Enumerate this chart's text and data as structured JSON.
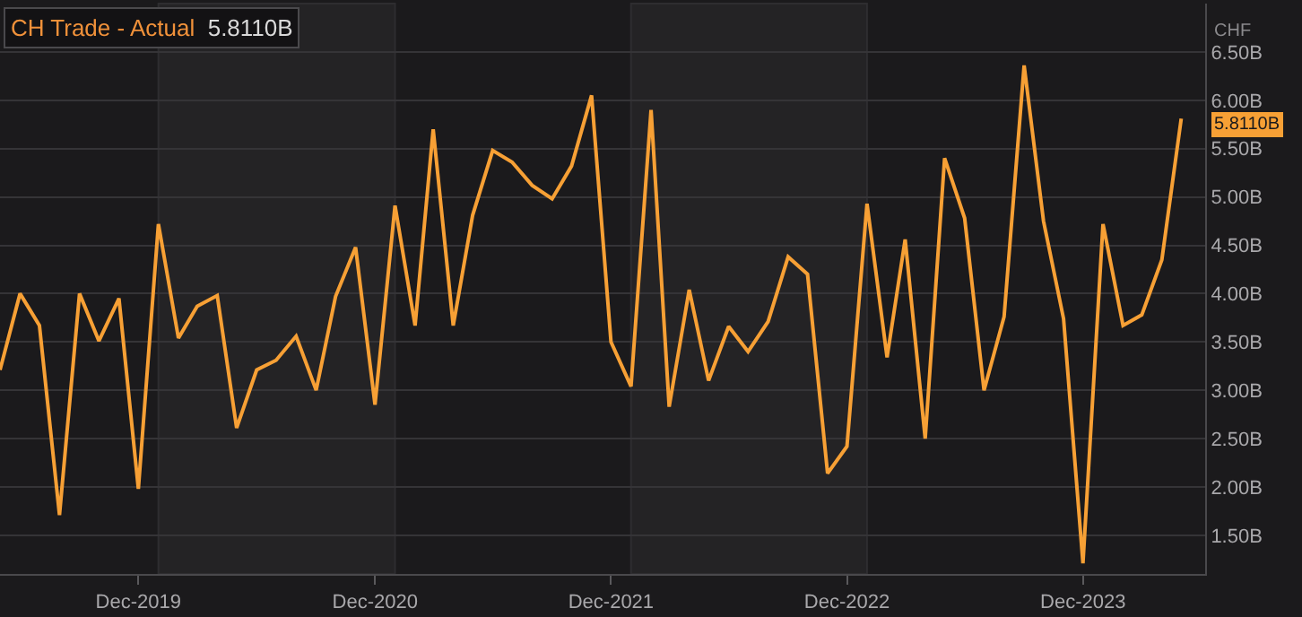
{
  "chart_data": {
    "type": "line",
    "title": "CH Trade - Actual",
    "subtitle": "5.8110B",
    "ylabel": "CHF",
    "x": [
      "2019-05",
      "2019-06",
      "2019-07",
      "2019-08",
      "2019-09",
      "2019-10",
      "2019-11",
      "2019-12",
      "2020-01",
      "2020-02",
      "2020-03",
      "2020-04",
      "2020-05",
      "2020-06",
      "2020-07",
      "2020-08",
      "2020-09",
      "2020-10",
      "2020-11",
      "2020-12",
      "2021-01",
      "2021-02",
      "2021-03",
      "2021-04",
      "2021-05",
      "2021-06",
      "2021-07",
      "2021-08",
      "2021-09",
      "2021-10",
      "2021-11",
      "2021-12",
      "2022-01",
      "2022-02",
      "2022-03",
      "2022-04",
      "2022-05",
      "2022-06",
      "2022-07",
      "2022-08",
      "2022-09",
      "2022-10",
      "2022-11",
      "2022-12",
      "2023-01",
      "2023-02",
      "2023-03",
      "2023-04",
      "2023-05",
      "2023-06",
      "2023-07",
      "2023-08",
      "2023-09",
      "2023-10",
      "2023-11",
      "2023-12",
      "2024-01",
      "2024-02",
      "2024-03",
      "2024-04",
      "2024-05"
    ],
    "series": [
      {
        "color": "#f7a035",
        "values": [
          3.21,
          4.0,
          3.67,
          1.71,
          4.0,
          3.51,
          3.95,
          1.98,
          4.72,
          3.54,
          3.87,
          3.98,
          2.61,
          3.21,
          3.31,
          3.56,
          3.0,
          3.97,
          4.48,
          2.85,
          4.91,
          3.67,
          5.7,
          3.67,
          4.81,
          5.48,
          5.36,
          5.12,
          4.98,
          5.32,
          6.05,
          3.5,
          3.04,
          5.9,
          2.83,
          4.04,
          3.1,
          3.66,
          3.4,
          3.71,
          4.38,
          4.2,
          2.14,
          2.42,
          4.93,
          3.34,
          4.56,
          2.5,
          5.4,
          4.78,
          3.0,
          3.76,
          6.36,
          4.75,
          3.74,
          1.21,
          4.72,
          3.67,
          3.78,
          4.35,
          5.811
        ]
      }
    ],
    "xlim": [
      "2019-05-01",
      "2024-06-07"
    ],
    "xticks": [
      {
        "value": "2019-12-01",
        "label": "Dec-2019"
      },
      {
        "value": "2020-12-01",
        "label": "Dec-2020"
      },
      {
        "value": "2021-12-01",
        "label": "Dec-2021"
      },
      {
        "value": "2022-12-01",
        "label": "Dec-2022"
      },
      {
        "value": "2023-12-01",
        "label": "Dec-2023"
      }
    ],
    "ylim": [
      1.1,
      7.0
    ],
    "yticks": [
      {
        "value": 1.5,
        "label": "1.50B"
      },
      {
        "value": 2.0,
        "label": "2.00B"
      },
      {
        "value": 2.5,
        "label": "2.50B"
      },
      {
        "value": 3.0,
        "label": "3.00B"
      },
      {
        "value": 3.5,
        "label": "3.50B"
      },
      {
        "value": 4.0,
        "label": "4.00B"
      },
      {
        "value": 4.5,
        "label": "4.50B"
      },
      {
        "value": 5.0,
        "label": "5.00B"
      },
      {
        "value": 5.5,
        "label": "5.50B"
      },
      {
        "value": 6.0,
        "label": "6.00B"
      },
      {
        "value": 6.5,
        "label": "6.50B"
      }
    ],
    "bands": [
      {
        "axis": "x",
        "from": "2020-01-01",
        "to": "2021-01-01",
        "color": "#242325"
      },
      {
        "axis": "x",
        "from": "2022-01-01",
        "to": "2023-01-01",
        "color": "#242325"
      }
    ],
    "annotations": [
      {
        "text": "5.8110B",
        "x": "2024-05",
        "y": 5.811
      }
    ],
    "grid": "y",
    "legend": false,
    "marker": "none",
    "line_style": "solid"
  }
}
